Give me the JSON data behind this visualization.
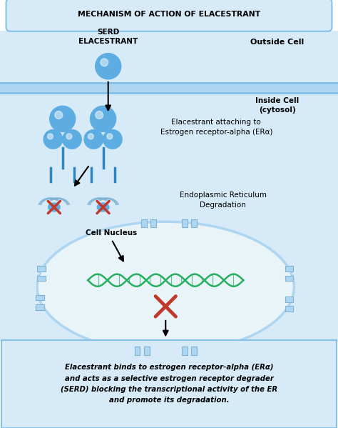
{
  "title": "MECHANISM OF ACTION OF ELACESTRANT",
  "bg_color": "#ffffff",
  "light_blue_bg": "#d6eaf8",
  "cell_membrane_color": "#aed6f1",
  "cell_membrane_stripe": "#85c1e9",
  "nucleus_fill": "#d6eaf8",
  "nucleus_edge": "#aed6f1",
  "blue_molecule_color": "#5dade2",
  "blue_molecule_dark": "#2e86c1",
  "green_dna_color": "#27ae60",
  "red_x_color": "#c0392b",
  "arrow_color": "#1a1a1a",
  "text_color": "#000000",
  "outside_cell_label": "Outside Cell",
  "inside_cell_label": "Inside Cell\n(cytosol)",
  "serd_label": "SERD\nELACESTRANT",
  "attach_label": "Elacestrant attaching to\nEstrogen receptor-alpha (ERα)",
  "er_label": "Endoplasmic Reticulum\nDegradation",
  "nucleus_label": "Cell Nucleus",
  "summary_text": "Elacestrant binds to estrogen receptor-alpha (ERα)\nand acts as a selective estrogen receptor degrader\n(SERD) blocking the transcriptional activity of the ER\nand promote its degradation.",
  "title_box_color": "#aed6f1",
  "summary_box_color": "#d6eaf8",
  "summary_box_edge": "#85c1e9"
}
